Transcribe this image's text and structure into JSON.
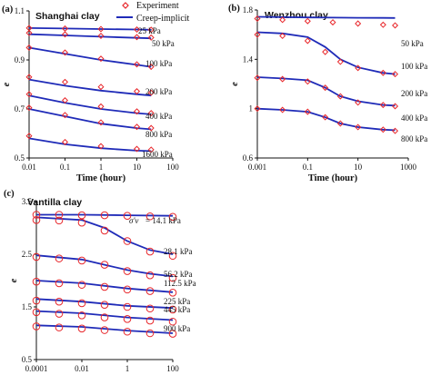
{
  "legend": {
    "experiment": "Experiment",
    "model": "Creep-implicit"
  },
  "colors": {
    "experiment": "#e8262a",
    "model": "#1f2bb8",
    "axis": "#111111"
  },
  "chart_data": [
    {
      "type": "scatter",
      "letter": "(a)",
      "title": "Shanghai clay",
      "xlabel": "Time (hour)",
      "ylabel": "e",
      "xscale": "log",
      "xlim": [
        0.01,
        100
      ],
      "ylim": [
        0.5,
        1.1
      ],
      "xticks": [
        0.01,
        0.1,
        1,
        10,
        100
      ],
      "xtick_labels": [
        "0.01",
        "0.1",
        "1",
        "10",
        "100"
      ],
      "yticks": [
        0.5,
        0.7,
        0.9,
        1.1
      ],
      "ytick_labels": [
        "0.5",
        "0.7",
        "0.9",
        "1.1"
      ],
      "curves": [
        {
          "label": "25 kPa",
          "points": [
            [
              0.01,
              1.03
            ],
            [
              0.1,
              1.028
            ],
            [
              1,
              1.026
            ],
            [
              10,
              1.024
            ],
            [
              25,
              1.023
            ]
          ]
        },
        {
          "label": "50 kPa",
          "points": [
            [
              0.01,
              1.005
            ],
            [
              0.1,
              1.0
            ],
            [
              1,
              0.995
            ],
            [
              10,
              0.99
            ],
            [
              25,
              0.988
            ]
          ]
        },
        {
          "label": "100 kPa",
          "points": [
            [
              0.01,
              0.95
            ],
            [
              0.1,
              0.925
            ],
            [
              1,
              0.9
            ],
            [
              10,
              0.88
            ],
            [
              25,
              0.872
            ]
          ]
        },
        {
          "label": "200 kPa",
          "points": [
            [
              0.01,
              0.82
            ],
            [
              0.1,
              0.795
            ],
            [
              1,
              0.775
            ],
            [
              10,
              0.76
            ],
            [
              25,
              0.755
            ]
          ]
        },
        {
          "label": "400 kPa",
          "points": [
            [
              0.01,
              0.755
            ],
            [
              0.1,
              0.725
            ],
            [
              1,
              0.7
            ],
            [
              10,
              0.683
            ],
            [
              25,
              0.678
            ]
          ]
        },
        {
          "label": "800 kPa",
          "points": [
            [
              0.01,
              0.7
            ],
            [
              0.1,
              0.67
            ],
            [
              1,
              0.64
            ],
            [
              10,
              0.622
            ],
            [
              25,
              0.617
            ]
          ]
        },
        {
          "label": "1600 kPa",
          "points": [
            [
              0.01,
              0.58
            ],
            [
              0.1,
              0.556
            ],
            [
              1,
              0.54
            ],
            [
              10,
              0.53
            ],
            [
              25,
              0.528
            ]
          ]
        }
      ],
      "experiments": [
        {
          "points": [
            [
              0.01,
              1.03
            ],
            [
              0.1,
              1.028
            ],
            [
              1,
              1.026
            ],
            [
              10,
              1.024
            ],
            [
              25,
              1.023
            ]
          ]
        },
        {
          "points": [
            [
              0.01,
              1.01
            ],
            [
              0.1,
              1.004
            ],
            [
              1,
              0.998
            ],
            [
              10,
              0.993
            ],
            [
              25,
              0.991
            ]
          ]
        },
        {
          "points": [
            [
              0.01,
              0.95
            ],
            [
              0.1,
              0.93
            ],
            [
              1,
              0.905
            ],
            [
              10,
              0.882
            ],
            [
              25,
              0.872
            ]
          ]
        },
        {
          "points": [
            [
              0.01,
              0.83
            ],
            [
              0.1,
              0.81
            ],
            [
              1,
              0.79
            ],
            [
              10,
              0.772
            ],
            [
              25,
              0.766
            ]
          ]
        },
        {
          "points": [
            [
              0.01,
              0.76
            ],
            [
              0.1,
              0.735
            ],
            [
              1,
              0.71
            ],
            [
              10,
              0.69
            ],
            [
              25,
              0.683
            ]
          ]
        },
        {
          "points": [
            [
              0.01,
              0.705
            ],
            [
              0.1,
              0.675
            ],
            [
              1,
              0.645
            ],
            [
              10,
              0.627
            ],
            [
              25,
              0.622
            ]
          ]
        },
        {
          "points": [
            [
              0.01,
              0.59
            ],
            [
              0.1,
              0.565
            ],
            [
              1,
              0.548
            ],
            [
              10,
              0.537
            ],
            [
              25,
              0.534
            ]
          ]
        }
      ]
    },
    {
      "type": "scatter",
      "letter": "(b)",
      "title": "Wenzhou clay",
      "xlabel": "Time (hour)",
      "ylabel": "e",
      "xscale": "log",
      "xlim": [
        0.001,
        1000
      ],
      "ylim": [
        0.6,
        1.8
      ],
      "xticks": [
        0.001,
        0.1,
        10,
        1000
      ],
      "xtick_labels": [
        "0.001",
        "0.1",
        "10",
        "1000"
      ],
      "yticks": [
        0.6,
        1.0,
        1.4,
        1.8
      ],
      "ytick_labels": [
        "0.6",
        "1",
        "1.4",
        "1.8"
      ],
      "curves": [
        {
          "label": "50 kPa",
          "points": [
            [
              0.001,
              1.745
            ],
            [
              0.01,
              1.742
            ],
            [
              0.1,
              1.74
            ],
            [
              1,
              1.738
            ],
            [
              10,
              1.737
            ],
            [
              100,
              1.736
            ],
            [
              300,
              1.735
            ]
          ]
        },
        {
          "label": "100 kPa",
          "points": [
            [
              0.001,
              1.62
            ],
            [
              0.01,
              1.61
            ],
            [
              0.1,
              1.58
            ],
            [
              0.5,
              1.5
            ],
            [
              2,
              1.4
            ],
            [
              10,
              1.335
            ],
            [
              100,
              1.29
            ],
            [
              300,
              1.28
            ]
          ]
        },
        {
          "label": "200 kPa",
          "points": [
            [
              0.001,
              1.255
            ],
            [
              0.01,
              1.245
            ],
            [
              0.1,
              1.23
            ],
            [
              0.5,
              1.17
            ],
            [
              2,
              1.1
            ],
            [
              10,
              1.06
            ],
            [
              100,
              1.03
            ],
            [
              300,
              1.025
            ]
          ]
        },
        {
          "label": "400 kPa",
          "points": [
            [
              0.001,
              1.0
            ],
            [
              0.01,
              0.99
            ],
            [
              0.1,
              0.975
            ],
            [
              0.5,
              0.93
            ],
            [
              2,
              0.88
            ],
            [
              10,
              0.85
            ],
            [
              100,
              0.83
            ],
            [
              300,
              0.825
            ]
          ]
        },
        {
          "label": "800 kPa",
          "points": []
        }
      ],
      "experiments": [
        {
          "points": [
            [
              0.001,
              1.73
            ],
            [
              0.01,
              1.72
            ],
            [
              0.1,
              1.71
            ],
            [
              1,
              1.7
            ],
            [
              10,
              1.69
            ],
            [
              100,
              1.68
            ],
            [
              300,
              1.675
            ]
          ]
        },
        {
          "points": [
            [
              0.001,
              1.6
            ],
            [
              0.01,
              1.59
            ],
            [
              0.1,
              1.55
            ],
            [
              0.5,
              1.46
            ],
            [
              2,
              1.38
            ],
            [
              10,
              1.33
            ],
            [
              100,
              1.29
            ],
            [
              300,
              1.28
            ]
          ]
        },
        {
          "points": [
            [
              0.001,
              1.25
            ],
            [
              0.01,
              1.24
            ],
            [
              0.1,
              1.22
            ],
            [
              0.5,
              1.17
            ],
            [
              2,
              1.1
            ],
            [
              10,
              1.05
            ],
            [
              100,
              1.03
            ],
            [
              300,
              1.02
            ]
          ]
        },
        {
          "points": [
            [
              0.001,
              1.0
            ],
            [
              0.01,
              0.99
            ],
            [
              0.1,
              0.975
            ],
            [
              0.5,
              0.93
            ],
            [
              2,
              0.88
            ],
            [
              10,
              0.85
            ],
            [
              100,
              0.83
            ],
            [
              300,
              0.82
            ]
          ]
        }
      ]
    },
    {
      "type": "scatter",
      "letter": "(c)",
      "title": "Vantilla clay",
      "xlabel": "Time (day)",
      "ylabel": "e",
      "xscale": "log",
      "xlim": [
        0.0001,
        100
      ],
      "ylim": [
        0.5,
        3.5
      ],
      "xticks": [
        0.0001,
        0.01,
        1,
        100
      ],
      "xtick_labels": [
        "0.0001",
        "0.01",
        "1",
        "100"
      ],
      "yticks": [
        0.5,
        1.5,
        2.5,
        3.5
      ],
      "ytick_labels": [
        "0.5",
        "1.5",
        "2.5",
        "3.5"
      ],
      "curves": [
        {
          "label": "= 14.1 kPa",
          "symbol": "σ'v",
          "points": [
            [
              0.0001,
              3.25
            ],
            [
              0.01,
              3.25
            ],
            [
              1,
              3.24
            ],
            [
              100,
              3.23
            ]
          ]
        },
        {
          "label": "28.1 kPa",
          "points": [
            [
              0.0001,
              3.2
            ],
            [
              0.01,
              3.15
            ],
            [
              0.1,
              3.0
            ],
            [
              1,
              2.75
            ],
            [
              10,
              2.58
            ],
            [
              100,
              2.5
            ]
          ]
        },
        {
          "label": "56.2 kPa",
          "points": [
            [
              0.0001,
              2.48
            ],
            [
              0.01,
              2.4
            ],
            [
              0.1,
              2.3
            ],
            [
              1,
              2.2
            ],
            [
              10,
              2.13
            ],
            [
              100,
              2.08
            ]
          ]
        },
        {
          "label": "112.5 kPa",
          "points": [
            [
              0.0001,
              2.0
            ],
            [
              0.01,
              1.95
            ],
            [
              1,
              1.85
            ],
            [
              100,
              1.78
            ]
          ]
        },
        {
          "label": "225 kPa",
          "points": [
            [
              0.0001,
              1.65
            ],
            [
              0.01,
              1.6
            ],
            [
              1,
              1.52
            ],
            [
              100,
              1.48
            ]
          ]
        },
        {
          "label": "445 kPa",
          "points": [
            [
              0.0001,
              1.42
            ],
            [
              0.01,
              1.38
            ],
            [
              1,
              1.3
            ],
            [
              100,
              1.25
            ]
          ]
        },
        {
          "label": "900 kPa",
          "points": [
            [
              0.0001,
              1.15
            ],
            [
              0.01,
              1.12
            ],
            [
              1,
              1.05
            ],
            [
              100,
              1.0
            ]
          ]
        }
      ],
      "experiments": [
        {
          "points": [
            [
              0.0001,
              3.25
            ],
            [
              0.001,
              3.25
            ],
            [
              0.01,
              3.24
            ],
            [
              0.1,
              3.24
            ],
            [
              1,
              3.23
            ],
            [
              10,
              3.22
            ],
            [
              100,
              3.21
            ]
          ]
        },
        {
          "points": [
            [
              0.0001,
              3.15
            ],
            [
              0.001,
              3.14
            ],
            [
              0.01,
              3.1
            ],
            [
              0.1,
              2.95
            ],
            [
              1,
              2.75
            ],
            [
              10,
              2.55
            ],
            [
              100,
              2.47
            ]
          ]
        },
        {
          "points": [
            [
              0.0001,
              2.45
            ],
            [
              0.001,
              2.42
            ],
            [
              0.01,
              2.38
            ],
            [
              0.1,
              2.3
            ],
            [
              1,
              2.18
            ],
            [
              10,
              2.1
            ],
            [
              100,
              2.05
            ]
          ]
        },
        {
          "points": [
            [
              0.0001,
              1.98
            ],
            [
              0.001,
              1.95
            ],
            [
              0.01,
              1.92
            ],
            [
              0.1,
              1.88
            ],
            [
              1,
              1.83
            ],
            [
              10,
              1.8
            ],
            [
              100,
              1.77
            ]
          ]
        },
        {
          "points": [
            [
              0.0001,
              1.62
            ],
            [
              0.001,
              1.6
            ],
            [
              0.01,
              1.57
            ],
            [
              0.1,
              1.54
            ],
            [
              1,
              1.5
            ],
            [
              10,
              1.47
            ],
            [
              100,
              1.45
            ]
          ]
        },
        {
          "points": [
            [
              0.0001,
              1.4
            ],
            [
              0.001,
              1.37
            ],
            [
              0.01,
              1.34
            ],
            [
              0.1,
              1.3
            ],
            [
              1,
              1.27
            ],
            [
              10,
              1.24
            ],
            [
              100,
              1.22
            ]
          ]
        },
        {
          "points": [
            [
              0.0001,
              1.13
            ],
            [
              0.001,
              1.11
            ],
            [
              0.01,
              1.09
            ],
            [
              0.1,
              1.06
            ],
            [
              1,
              1.03
            ],
            [
              10,
              1.0
            ],
            [
              100,
              0.99
            ]
          ]
        }
      ]
    }
  ]
}
